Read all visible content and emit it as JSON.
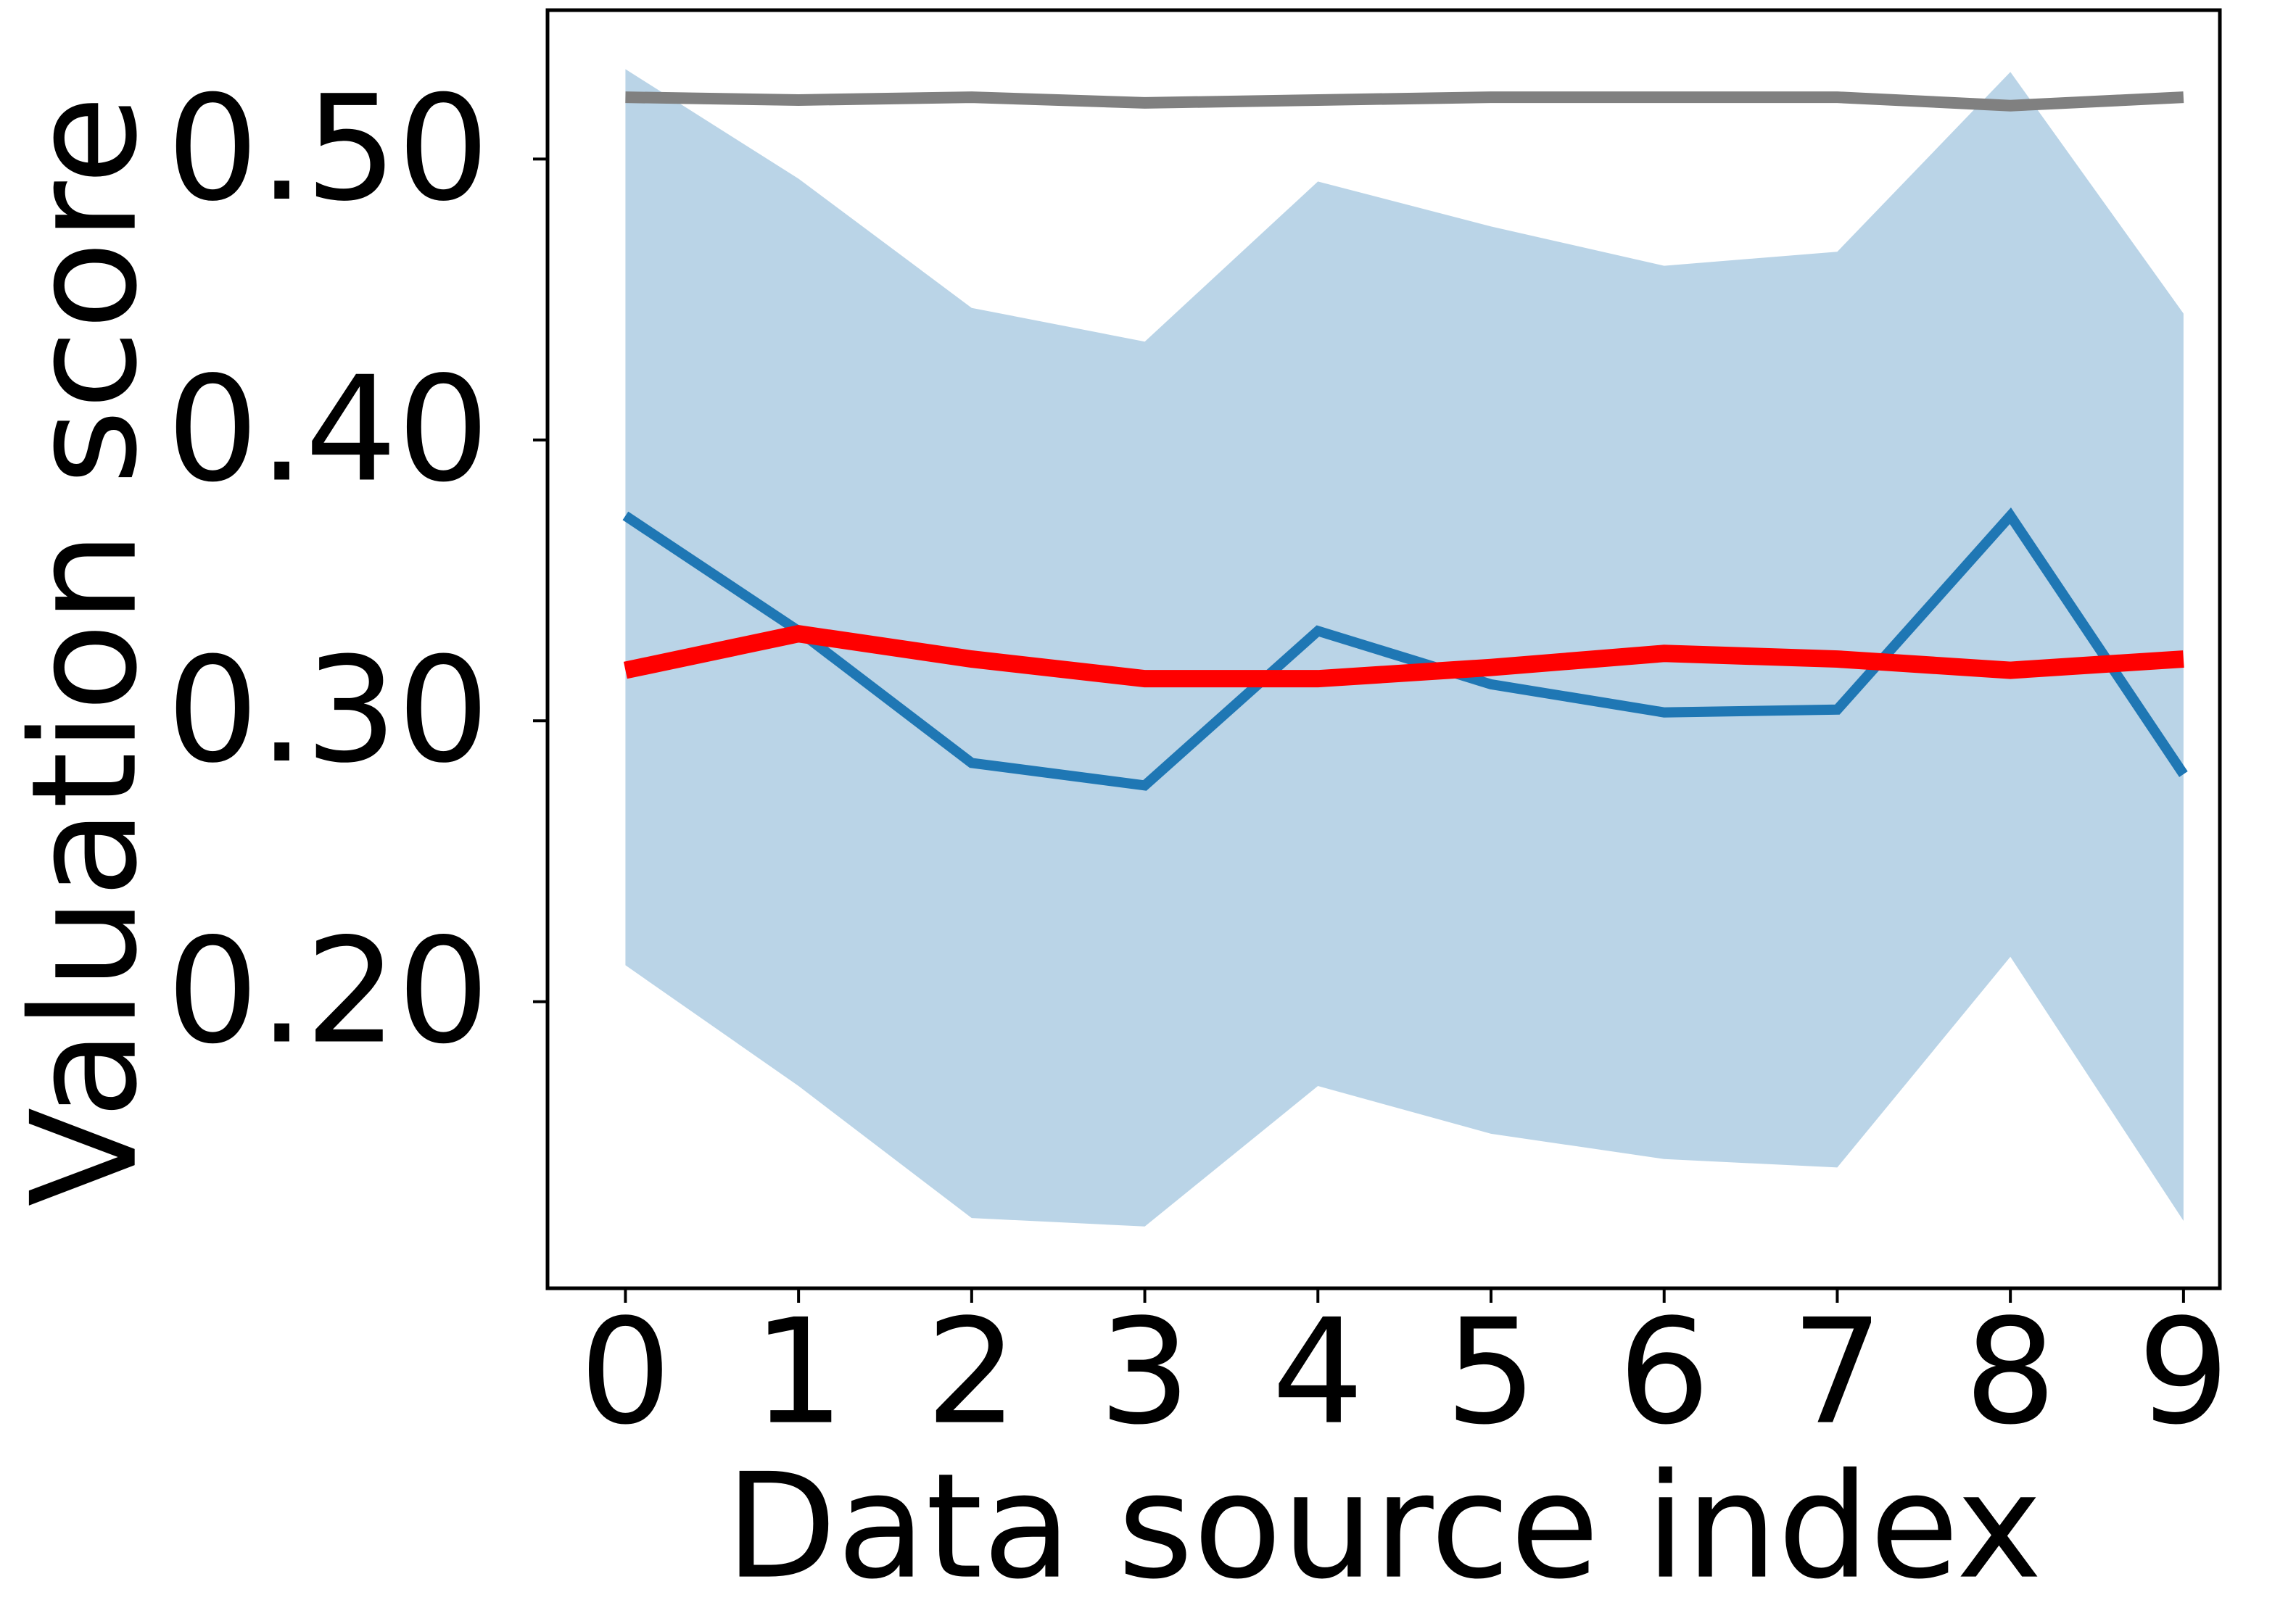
{
  "chart_data": {
    "type": "line",
    "x_label": "Data source index",
    "y_label": "Valuation score",
    "x": [
      0,
      1,
      2,
      3,
      4,
      5,
      6,
      7,
      8,
      9
    ],
    "xlim": [
      -0.45,
      9.21
    ],
    "xticks": [
      0,
      1,
      2,
      3,
      4,
      5,
      6,
      7,
      8,
      9
    ],
    "ylim": [
      0.098,
      0.553
    ],
    "yticks": [
      {
        "value": 0.2,
        "label": "0.20"
      },
      {
        "value": 0.3,
        "label": "0.30"
      },
      {
        "value": 0.4,
        "label": "0.40"
      },
      {
        "value": 0.5,
        "label": "0.50"
      }
    ],
    "band": {
      "color": "#bad4e7",
      "upper": [
        0.532,
        0.493,
        0.447,
        0.435,
        0.492,
        0.476,
        0.462,
        0.467,
        0.531,
        0.445
      ],
      "lower": [
        0.213,
        0.17,
        0.123,
        0.12,
        0.17,
        0.153,
        0.144,
        0.141,
        0.216,
        0.122
      ]
    },
    "series": [
      {
        "color": "#808080",
        "width": 16,
        "values": [
          0.522,
          0.521,
          0.522,
          0.52,
          0.521,
          0.522,
          0.522,
          0.522,
          0.519,
          0.522
        ]
      },
      {
        "color": "#1f77b4",
        "width": 14,
        "values": [
          0.373,
          0.332,
          0.285,
          0.277,
          0.332,
          0.313,
          0.303,
          0.304,
          0.373,
          0.281
        ]
      },
      {
        "color": "#ff0000",
        "width": 24,
        "values": [
          0.318,
          0.331,
          0.322,
          0.315,
          0.315,
          0.319,
          0.324,
          0.322,
          0.318,
          0.322
        ]
      }
    ]
  }
}
